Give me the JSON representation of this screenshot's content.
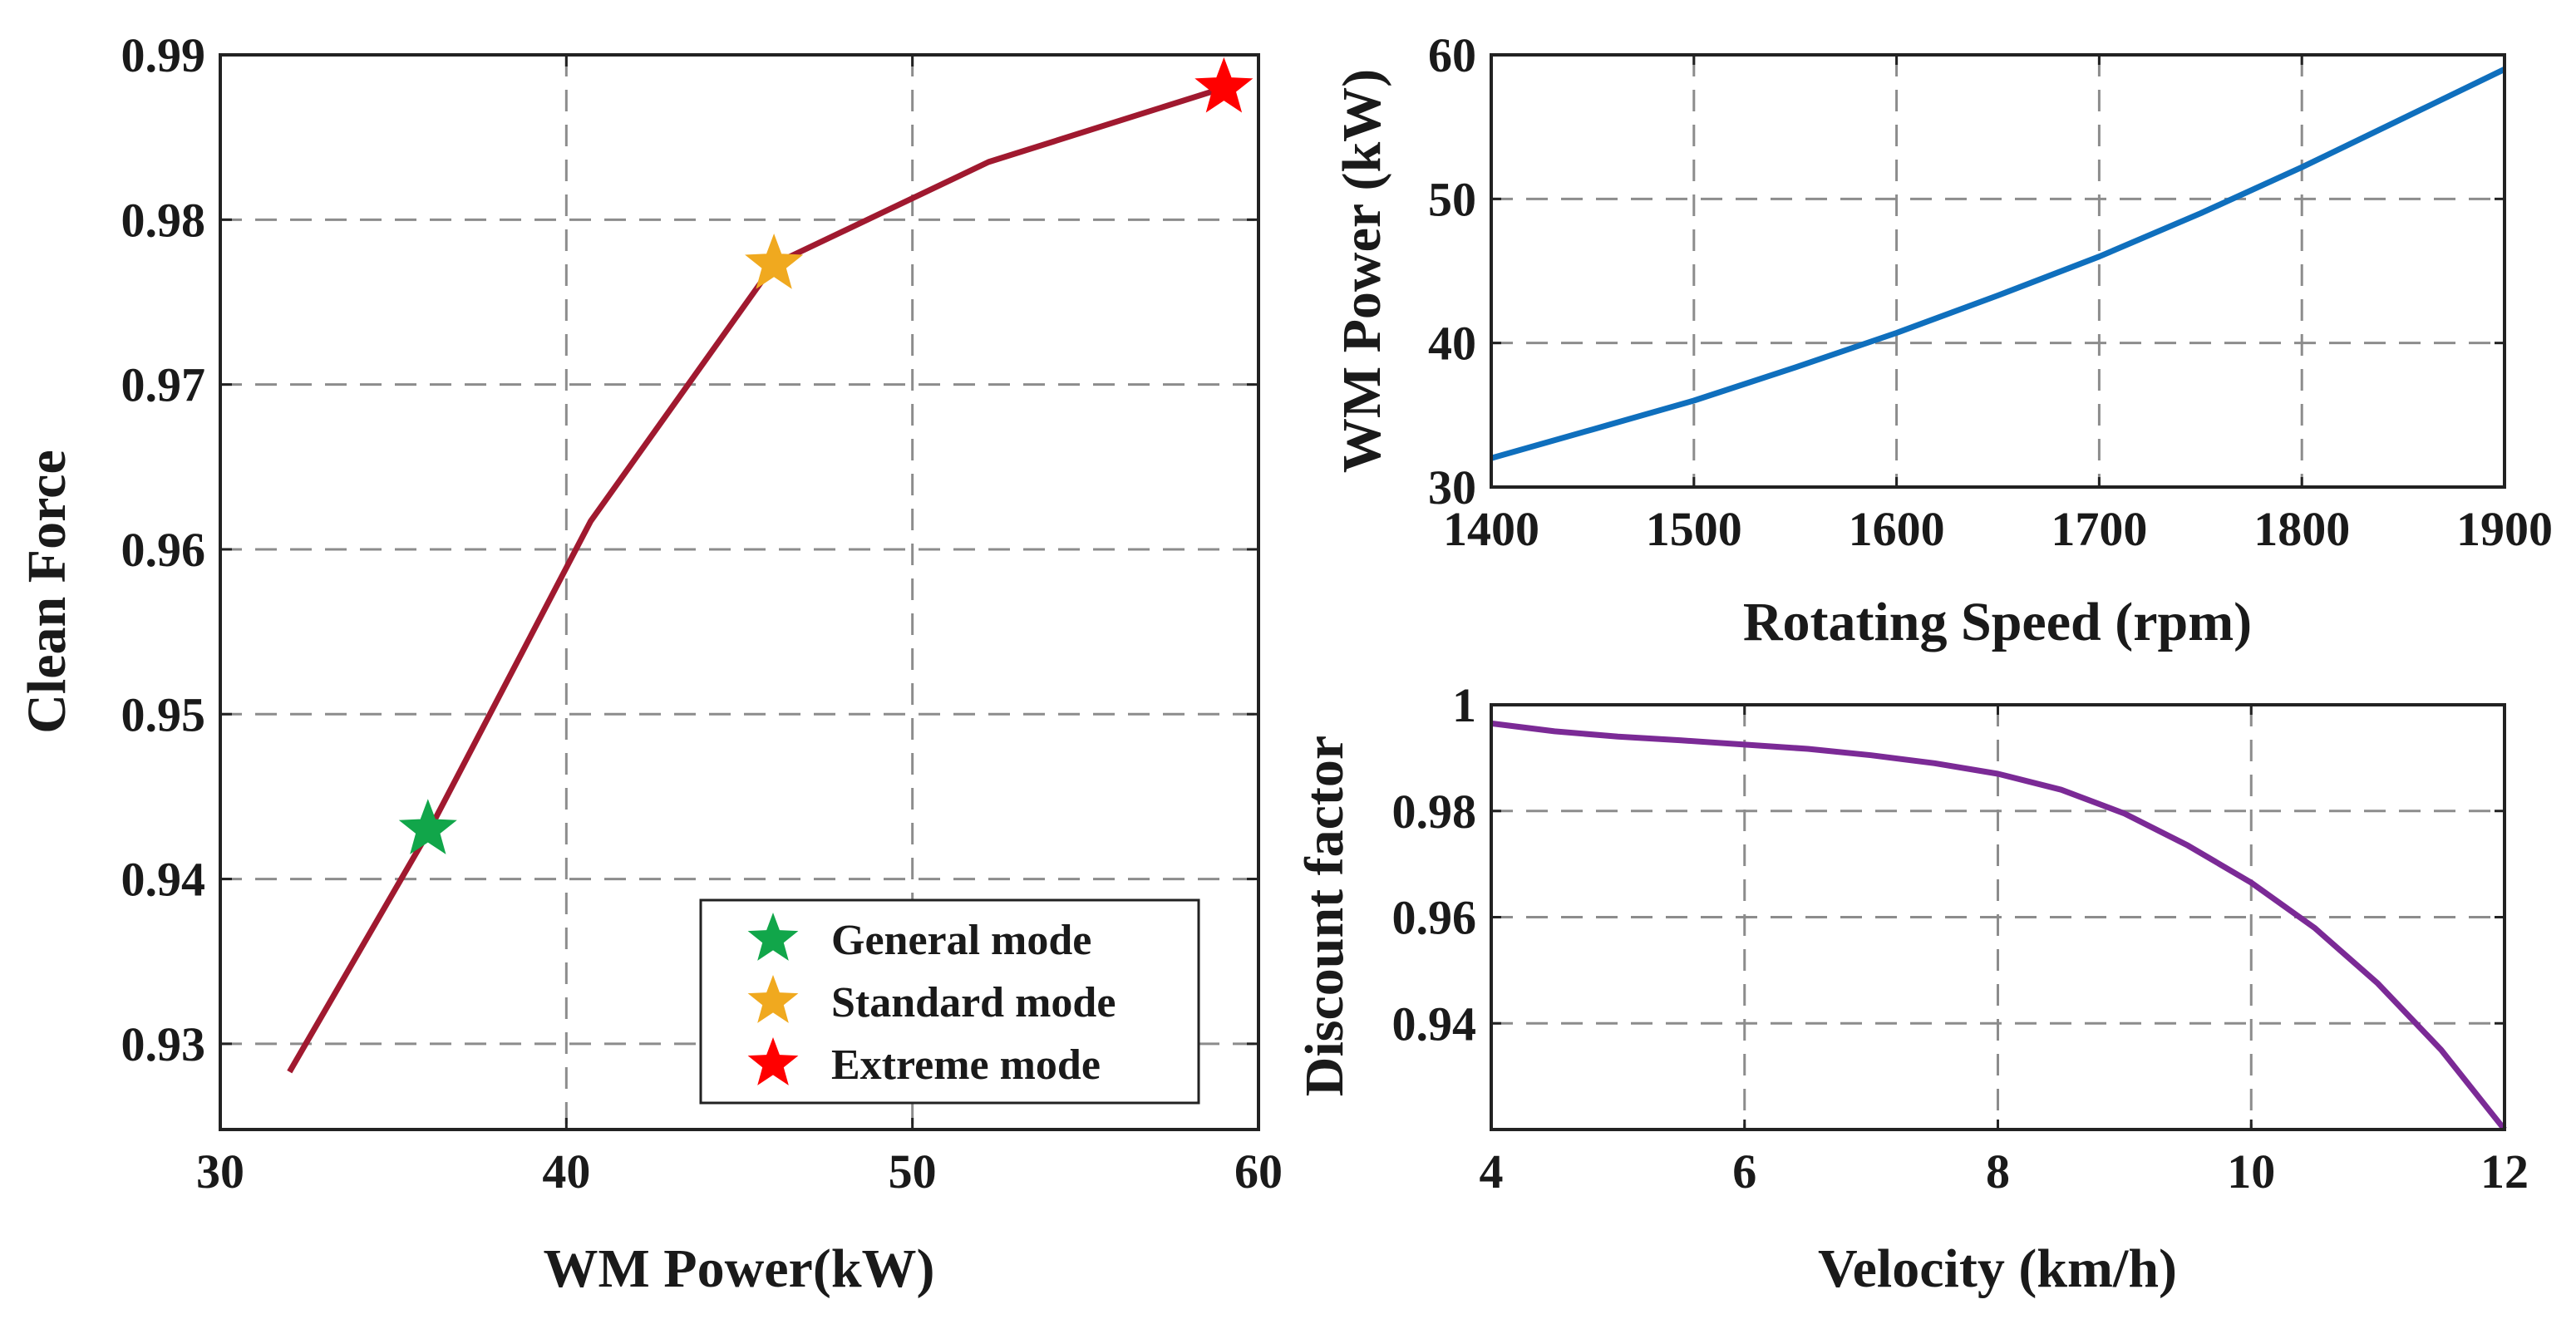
{
  "chart_data": [
    {
      "id": "left",
      "type": "line",
      "xlabel": "WM Power(kW)",
      "ylabel": "Clean Force",
      "xlim": [
        30,
        60
      ],
      "ylim": [
        0.9248,
        0.99
      ],
      "xticks": [
        30,
        40,
        50,
        60
      ],
      "yticks": [
        0.93,
        0.94,
        0.95,
        0.96,
        0.97,
        0.98,
        0.99
      ],
      "ytick_labels": [
        "0.93",
        "0.94",
        "0.95",
        "0.96",
        "0.97",
        "0.98",
        "0.99"
      ],
      "grid": true,
      "color": "#a0192f",
      "x": [
        32,
        36,
        40.7,
        46,
        52.2,
        59
      ],
      "y": [
        0.9283,
        0.9428,
        0.9617,
        0.9773,
        0.9835,
        0.988
      ],
      "markers": [
        {
          "label": "General mode",
          "x": 36,
          "y": 0.943,
          "color": "#11a64a"
        },
        {
          "label": "Standard mode",
          "x": 46,
          "y": 0.9773,
          "color": "#f0a91f"
        },
        {
          "label": "Extreme mode",
          "x": 59,
          "y": 0.988,
          "color": "#ff0000"
        }
      ],
      "legend_position": "bottom-right"
    },
    {
      "id": "top-right",
      "type": "line",
      "xlabel": "Rotating Speed (rpm)",
      "ylabel": "WM Power (kW)",
      "xlim": [
        1400,
        1900
      ],
      "ylim": [
        30,
        60
      ],
      "xticks": [
        1400,
        1500,
        1600,
        1700,
        1800,
        1900
      ],
      "yticks": [
        30,
        40,
        50,
        60
      ],
      "ytick_labels": [
        "30",
        "40",
        "50",
        "60"
      ],
      "grid": true,
      "color": "#0f6fbd",
      "x": [
        1400,
        1450,
        1500,
        1550,
        1600,
        1650,
        1700,
        1750,
        1800,
        1850,
        1900
      ],
      "y": [
        32,
        34,
        36,
        38.3,
        40.7,
        43.3,
        46,
        49,
        52.2,
        55.6,
        59
      ]
    },
    {
      "id": "bottom-right",
      "type": "line",
      "xlabel": "Velocity (km/h)",
      "ylabel": "Discount factor",
      "xlim": [
        4,
        12
      ],
      "ylim": [
        0.92,
        1.0
      ],
      "xticks": [
        4,
        6,
        8,
        10,
        12
      ],
      "yticks": [
        0.94,
        0.96,
        0.98,
        1.0
      ],
      "ytick_labels": [
        "0.94",
        "0.96",
        "0.98",
        "1"
      ],
      "grid": true,
      "color": "#7b2a96",
      "x": [
        4,
        4.5,
        5,
        5.5,
        6,
        6.5,
        7,
        7.5,
        8,
        8.5,
        9,
        9.5,
        10,
        10.5,
        11,
        11.5,
        12
      ],
      "y": [
        0.9965,
        0.995,
        0.994,
        0.9933,
        0.9925,
        0.9917,
        0.9905,
        0.989,
        0.987,
        0.984,
        0.9795,
        0.9735,
        0.9665,
        0.958,
        0.9475,
        0.935,
        0.92
      ]
    }
  ]
}
